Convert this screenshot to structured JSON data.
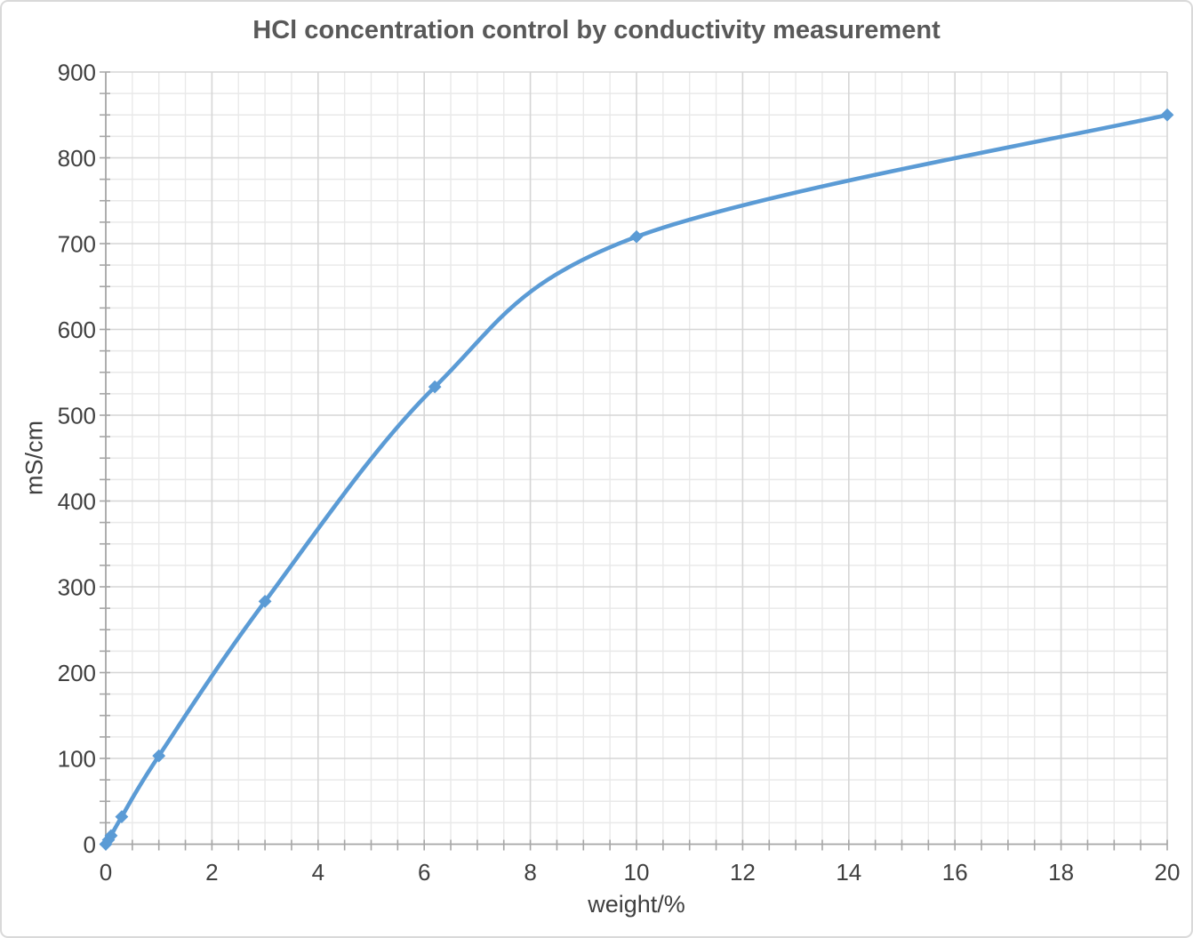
{
  "chart_data": {
    "type": "line",
    "title": "HCl concentration control by conductivity measurement",
    "xlabel": "weight/%",
    "ylabel": "mS/cm",
    "series": [
      {
        "color": "#5B9BD5",
        "marker": "diamond",
        "smooth": true,
        "x": [
          0,
          0.05,
          0.1,
          0.3,
          1,
          3,
          6.2,
          10,
          20
        ],
        "y": [
          0,
          5,
          10,
          32,
          103,
          283,
          533,
          708,
          850
        ]
      }
    ],
    "xlim": [
      0,
      20
    ],
    "ylim": [
      0,
      900
    ],
    "xticks": [
      0,
      2,
      4,
      6,
      8,
      10,
      12,
      14,
      16,
      18,
      20
    ],
    "yticks": [
      0,
      100,
      200,
      300,
      400,
      500,
      600,
      700,
      800,
      900
    ],
    "x_minor_step": 0.5,
    "y_minor_step": 25,
    "grid": "major+minor",
    "legend": "none",
    "colors": {
      "line": "#5B9BD5",
      "major_grid": "#D6D6D6",
      "minor_grid": "#E9E9E9",
      "axis": "#A6A6A6",
      "tick_label": "#404040",
      "title": "#595959",
      "frame_border": "#D9D9D9",
      "background": "#FFFFFF"
    }
  }
}
